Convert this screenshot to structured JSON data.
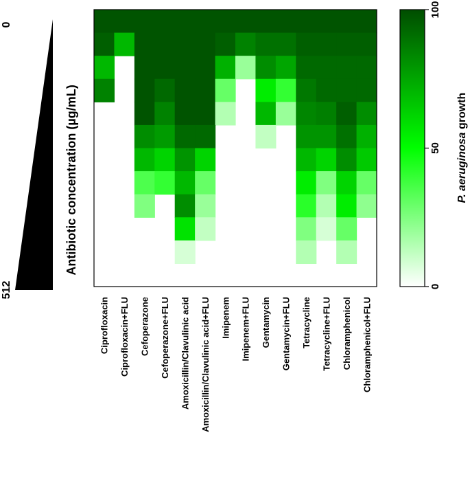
{
  "chart_data": {
    "type": "heatmap",
    "title": "",
    "ylabel": "Antibiotic concentration (µg/mL)",
    "triangle_top_label": "0",
    "triangle_bottom_label": "512",
    "categories": [
      "Ciprofloxacin",
      "Ciprofloxacin+FLU",
      "Cefoperazone",
      "Cefoperazone+FLU",
      "Amoxicillin/Clavulinic acid",
      "Amoxicillin/Clavulinic acid+FLU",
      "Imipenem",
      "Imipenem+FLU",
      "Gentamycin",
      "Gentamycin+FLU",
      "Tetracycline",
      "Tetracycline+FLU",
      "Chloramphenicol",
      "Chloramphenicol+FLU"
    ],
    "rows": 12,
    "values": [
      [
        98,
        98,
        98,
        98,
        98,
        98,
        98,
        98,
        98,
        98,
        98,
        98,
        98,
        98
      ],
      [
        95,
        70,
        98,
        98,
        98,
        98,
        95,
        85,
        90,
        90,
        95,
        95,
        95,
        95
      ],
      [
        70,
        0,
        98,
        98,
        98,
        98,
        72,
        20,
        82,
        75,
        92,
        92,
        92,
        92
      ],
      [
        85,
        0,
        98,
        92,
        98,
        98,
        30,
        0,
        55,
        40,
        88,
        92,
        92,
        92
      ],
      [
        0,
        0,
        98,
        85,
        98,
        98,
        15,
        0,
        70,
        20,
        84,
        86,
        95,
        82
      ],
      [
        0,
        0,
        82,
        78,
        92,
        92,
        0,
        0,
        12,
        0,
        80,
        80,
        90,
        72
      ],
      [
        0,
        0,
        70,
        62,
        80,
        62,
        0,
        0,
        0,
        0,
        70,
        62,
        82,
        65
      ],
      [
        0,
        0,
        35,
        40,
        70,
        30,
        0,
        0,
        0,
        0,
        55,
        25,
        62,
        30
      ],
      [
        0,
        0,
        25,
        0,
        82,
        20,
        0,
        0,
        0,
        0,
        42,
        15,
        55,
        22
      ],
      [
        0,
        0,
        0,
        0,
        58,
        12,
        0,
        0,
        0,
        0,
        25,
        8,
        30,
        0
      ],
      [
        0,
        0,
        0,
        0,
        8,
        0,
        0,
        0,
        0,
        0,
        15,
        0,
        15,
        0
      ],
      [
        0,
        0,
        0,
        0,
        0,
        0,
        0,
        0,
        0,
        0,
        0,
        0,
        0,
        0
      ]
    ],
    "colorbar": {
      "label_italic": "P. aeruginosa",
      "label_rest": " growth",
      "min": 0,
      "max": 100,
      "ticks": [
        "0",
        "50",
        "100"
      ],
      "color_low": "#ffffff",
      "color_mid": "#00ff00",
      "color_high": "#004d00"
    }
  }
}
